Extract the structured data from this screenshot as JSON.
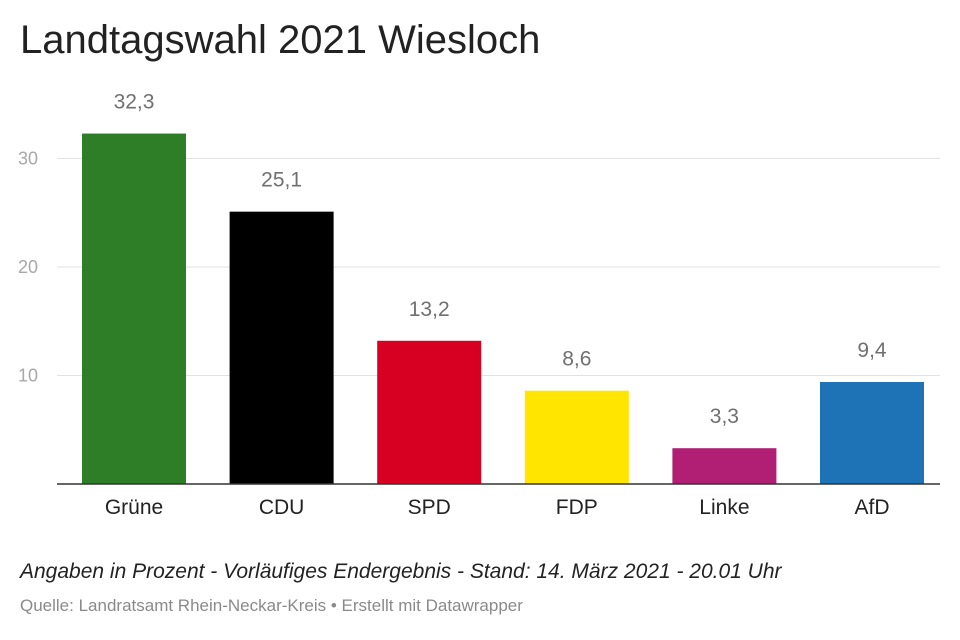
{
  "chart_data": {
    "type": "bar",
    "title": "Landtagswahl 2021 Wiesloch",
    "categories": [
      "Grüne",
      "CDU",
      "SPD",
      "FDP",
      "Linke",
      "AfD"
    ],
    "values": [
      32.3,
      25.1,
      13.2,
      8.6,
      3.3,
      9.4
    ],
    "value_labels": [
      "32,3",
      "25,1",
      "13,2",
      "8,6",
      "3,3",
      "9,4"
    ],
    "colors": [
      "#2e7d27",
      "#000000",
      "#d70022",
      "#ffe500",
      "#b01f73",
      "#1e73b6"
    ],
    "yticks": [
      10,
      20,
      30
    ],
    "ylim": [
      0,
      35
    ],
    "xlabel": "",
    "ylabel": "",
    "grid": true
  },
  "footer": {
    "note": "Angaben in Prozent - Vorläufiges Endergebnis - Stand: 14. März 2021 - 20.01 Uhr",
    "source": "Quelle: Landratsamt Rhein-Neckar-Kreis • Erstellt mit Datawrapper"
  }
}
